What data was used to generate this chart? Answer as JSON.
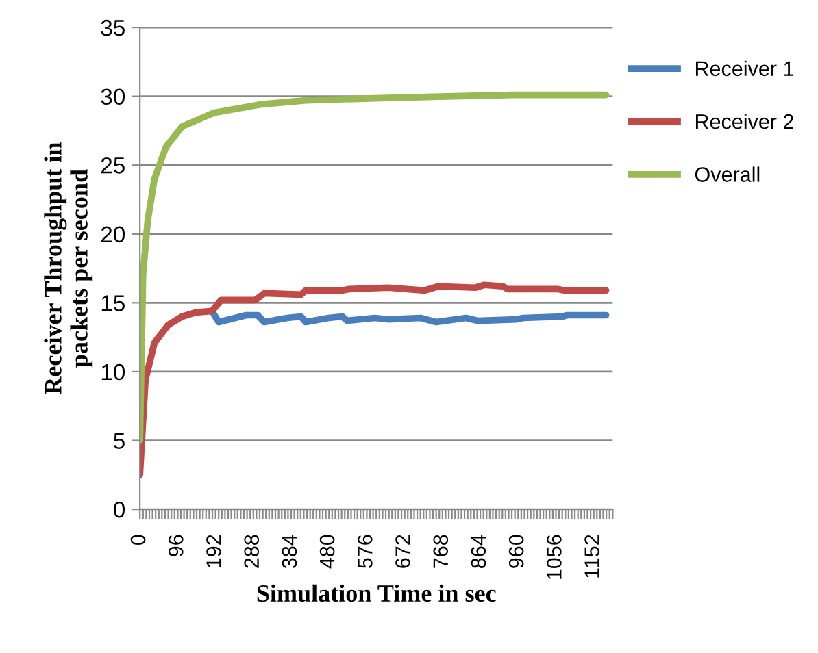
{
  "chart_data": {
    "type": "line",
    "xlabel": "Simulation Time in sec",
    "ylabel": "Receiver Throughput in\npackets per second",
    "xlim": [
      0,
      1200
    ],
    "ylim": [
      0,
      35
    ],
    "yticks": [
      0,
      5,
      10,
      15,
      20,
      25,
      30,
      35
    ],
    "xticks": [
      0,
      {
        "value": 8,
        "label": null
      },
      {
        "value": 16,
        "label": null
      },
      {
        "value": 24,
        "label": null
      },
      {
        "value": 32,
        "label": null
      },
      {
        "value": 40,
        "label": null
      },
      {
        "value": 48,
        "label": null
      },
      {
        "value": 56,
        "label": null
      },
      {
        "value": 64,
        "label": null
      },
      {
        "value": 72,
        "label": null
      },
      {
        "value": 80,
        "label": null
      },
      {
        "value": 88,
        "label": null
      },
      96,
      {
        "value": 104,
        "label": null
      },
      {
        "value": 112,
        "label": null
      },
      {
        "value": 120,
        "label": null
      },
      {
        "value": 128,
        "label": null
      },
      {
        "value": 136,
        "label": null
      },
      {
        "value": 144,
        "label": null
      },
      {
        "value": 152,
        "label": null
      },
      {
        "value": 160,
        "label": null
      },
      {
        "value": 168,
        "label": null
      },
      {
        "value": 176,
        "label": null
      },
      {
        "value": 184,
        "label": null
      },
      192,
      {
        "value": 200,
        "label": null
      },
      {
        "value": 208,
        "label": null
      },
      {
        "value": 216,
        "label": null
      },
      {
        "value": 224,
        "label": null
      },
      {
        "value": 232,
        "label": null
      },
      {
        "value": 240,
        "label": null
      },
      {
        "value": 248,
        "label": null
      },
      {
        "value": 256,
        "label": null
      },
      {
        "value": 264,
        "label": null
      },
      {
        "value": 272,
        "label": null
      },
      {
        "value": 280,
        "label": null
      },
      288,
      {
        "value": 296,
        "label": null
      },
      {
        "value": 304,
        "label": null
      },
      {
        "value": 312,
        "label": null
      },
      {
        "value": 320,
        "label": null
      },
      {
        "value": 328,
        "label": null
      },
      {
        "value": 336,
        "label": null
      },
      {
        "value": 344,
        "label": null
      },
      {
        "value": 352,
        "label": null
      },
      {
        "value": 360,
        "label": null
      },
      {
        "value": 368,
        "label": null
      },
      {
        "value": 376,
        "label": null
      },
      384,
      {
        "value": 392,
        "label": null
      },
      {
        "value": 400,
        "label": null
      },
      {
        "value": 408,
        "label": null
      },
      {
        "value": 416,
        "label": null
      },
      {
        "value": 424,
        "label": null
      },
      {
        "value": 432,
        "label": null
      },
      {
        "value": 440,
        "label": null
      },
      {
        "value": 448,
        "label": null
      },
      {
        "value": 456,
        "label": null
      },
      {
        "value": 464,
        "label": null
      },
      {
        "value": 472,
        "label": null
      },
      480,
      {
        "value": 488,
        "label": null
      },
      {
        "value": 496,
        "label": null
      },
      {
        "value": 504,
        "label": null
      },
      {
        "value": 512,
        "label": null
      },
      {
        "value": 520,
        "label": null
      },
      {
        "value": 528,
        "label": null
      },
      {
        "value": 536,
        "label": null
      },
      {
        "value": 544,
        "label": null
      },
      {
        "value": 552,
        "label": null
      },
      {
        "value": 560,
        "label": null
      },
      {
        "value": 568,
        "label": null
      },
      576,
      {
        "value": 584,
        "label": null
      },
      {
        "value": 592,
        "label": null
      },
      {
        "value": 600,
        "label": null
      },
      {
        "value": 608,
        "label": null
      },
      {
        "value": 616,
        "label": null
      },
      {
        "value": 624,
        "label": null
      },
      {
        "value": 632,
        "label": null
      },
      {
        "value": 640,
        "label": null
      },
      {
        "value": 648,
        "label": null
      },
      {
        "value": 656,
        "label": null
      },
      {
        "value": 664,
        "label": null
      },
      672,
      {
        "value": 680,
        "label": null
      },
      {
        "value": 688,
        "label": null
      },
      {
        "value": 696,
        "label": null
      },
      {
        "value": 704,
        "label": null
      },
      {
        "value": 712,
        "label": null
      },
      {
        "value": 720,
        "label": null
      },
      {
        "value": 728,
        "label": null
      },
      {
        "value": 736,
        "label": null
      },
      {
        "value": 744,
        "label": null
      },
      {
        "value": 752,
        "label": null
      },
      {
        "value": 760,
        "label": null
      },
      768,
      {
        "value": 776,
        "label": null
      },
      {
        "value": 784,
        "label": null
      },
      {
        "value": 792,
        "label": null
      },
      {
        "value": 800,
        "label": null
      },
      {
        "value": 808,
        "label": null
      },
      {
        "value": 816,
        "label": null
      },
      {
        "value": 824,
        "label": null
      },
      {
        "value": 832,
        "label": null
      },
      {
        "value": 840,
        "label": null
      },
      {
        "value": 848,
        "label": null
      },
      {
        "value": 856,
        "label": null
      },
      864,
      {
        "value": 872,
        "label": null
      },
      {
        "value": 880,
        "label": null
      },
      {
        "value": 888,
        "label": null
      },
      {
        "value": 896,
        "label": null
      },
      {
        "value": 904,
        "label": null
      },
      {
        "value": 912,
        "label": null
      },
      {
        "value": 920,
        "label": null
      },
      {
        "value": 928,
        "label": null
      },
      {
        "value": 936,
        "label": null
      },
      {
        "value": 944,
        "label": null
      },
      {
        "value": 952,
        "label": null
      },
      960,
      {
        "value": 968,
        "label": null
      },
      {
        "value": 976,
        "label": null
      },
      {
        "value": 984,
        "label": null
      },
      {
        "value": 992,
        "label": null
      },
      {
        "value": 1000,
        "label": null
      },
      {
        "value": 1008,
        "label": null
      },
      {
        "value": 1016,
        "label": null
      },
      {
        "value": 1024,
        "label": null
      },
      {
        "value": 1032,
        "label": null
      },
      {
        "value": 1040,
        "label": null
      },
      {
        "value": 1048,
        "label": null
      },
      1056,
      {
        "value": 1064,
        "label": null
      },
      {
        "value": 1072,
        "label": null
      },
      {
        "value": 1080,
        "label": null
      },
      {
        "value": 1088,
        "label": null
      },
      {
        "value": 1096,
        "label": null
      },
      {
        "value": 1104,
        "label": null
      },
      {
        "value": 1112,
        "label": null
      },
      {
        "value": 1120,
        "label": null
      },
      {
        "value": 1128,
        "label": null
      },
      {
        "value": 1136,
        "label": null
      },
      {
        "value": 1144,
        "label": null
      },
      1152,
      {
        "value": 1160,
        "label": null
      },
      {
        "value": 1168,
        "label": null
      },
      {
        "value": 1176,
        "label": null
      },
      {
        "value": 1184,
        "label": null
      },
      {
        "value": 1192,
        "label": null
      },
      {
        "value": 1200,
        "label": null
      }
    ],
    "grid": "y",
    "legend": "right",
    "marker": "none",
    "line_style": "solid",
    "series": [
      {
        "name": "Receiver 1",
        "color": "#4a7ebb",
        "x": [
          183,
          200,
          270,
          299,
          316,
          374,
          409,
          421,
          479,
          514,
          526,
          596,
          630,
          712,
          752,
          828,
          857,
          956,
          973,
          1072,
          1084,
          1183
        ],
        "values": [
          14.4,
          13.6,
          14.1,
          14.1,
          13.6,
          13.9,
          14.0,
          13.6,
          13.9,
          14.0,
          13.7,
          13.9,
          13.8,
          13.9,
          13.6,
          13.9,
          13.7,
          13.8,
          13.9,
          14.0,
          14.1,
          14.1
        ]
      },
      {
        "name": "Receiver 2",
        "color": "#be4b48",
        "x": [
          0,
          14,
          37,
          72,
          107,
          142,
          183,
          206,
          293,
          316,
          409,
          421,
          514,
          531,
          630,
          723,
          758,
          851,
          874,
          921,
          933,
          1060,
          1077,
          1183
        ],
        "values": [
          2.5,
          9.4,
          12.1,
          13.4,
          14.0,
          14.3,
          14.4,
          15.2,
          15.2,
          15.7,
          15.6,
          15.9,
          15.9,
          16.0,
          16.1,
          15.9,
          16.2,
          16.1,
          16.3,
          16.2,
          16.0,
          16.0,
          15.9,
          15.9
        ]
      },
      {
        "name": "Overall",
        "color": "#98b954",
        "x": [
          0,
          8,
          20,
          37,
          66,
          107,
          188,
          305,
          421,
          653,
          944,
          1183
        ],
        "values": [
          5,
          17.1,
          21,
          24,
          26.3,
          27.8,
          28.8,
          29.4,
          29.7,
          29.9,
          30.1,
          30.1
        ]
      }
    ]
  }
}
